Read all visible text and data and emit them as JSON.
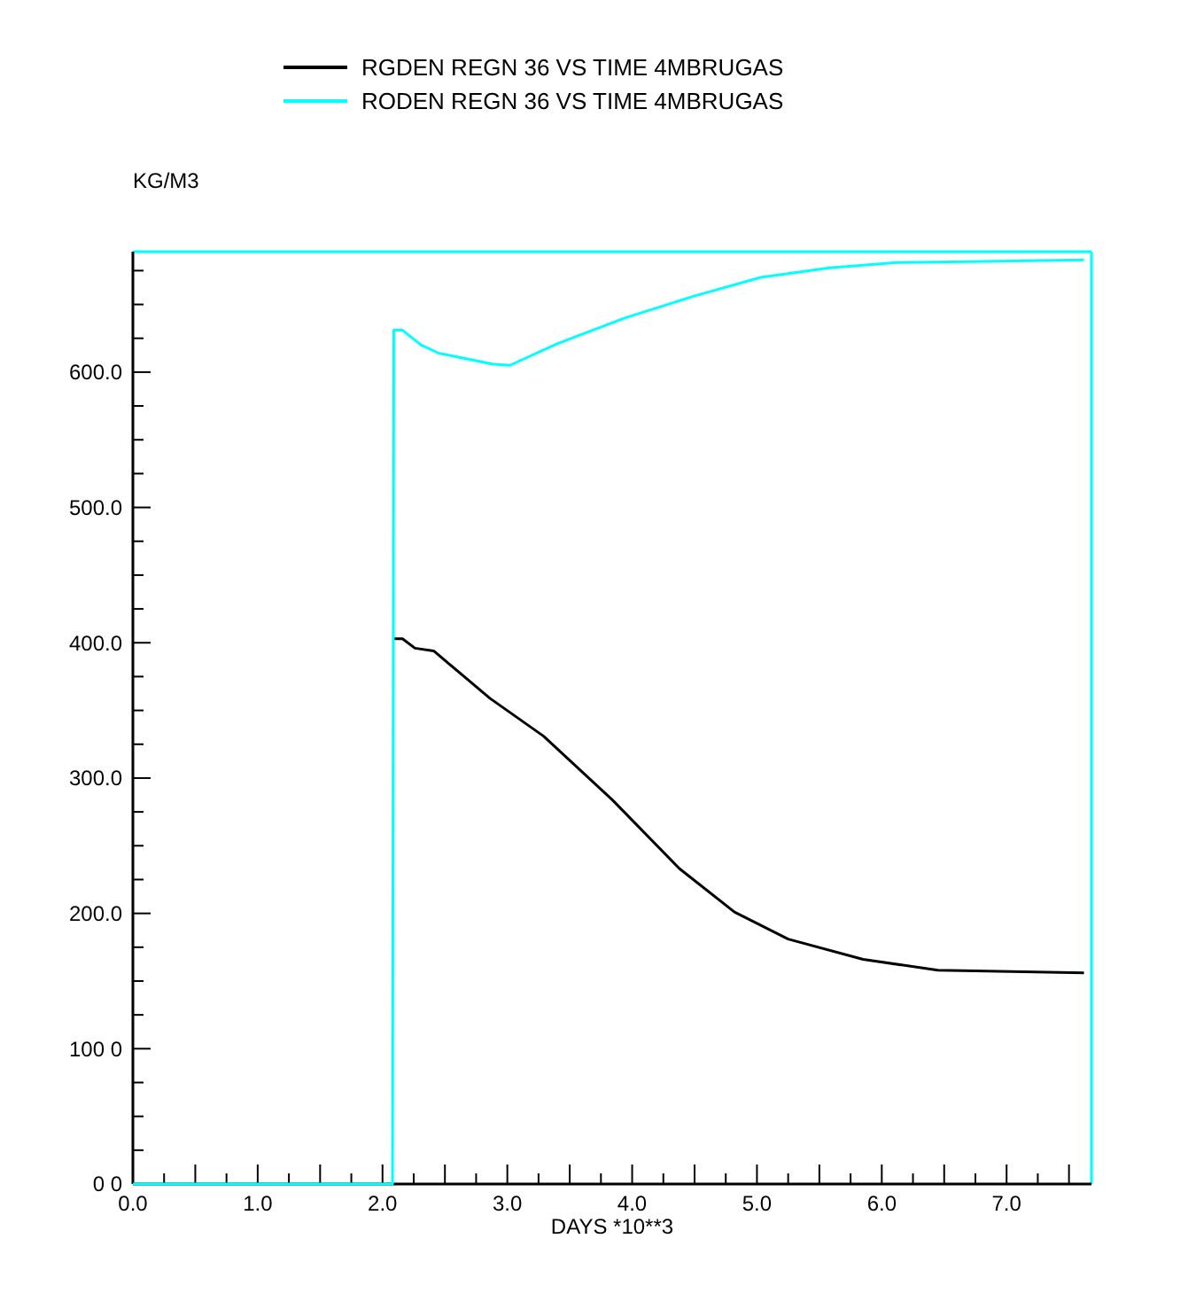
{
  "chart_data": {
    "type": "line",
    "xlabel": "DAYS *10**3",
    "ylabel": "KG/M3",
    "legend": "top",
    "grid": false,
    "marker": "none",
    "line_style": "solid",
    "xlim": [
      0,
      7.68
    ],
    "ylim": [
      0,
      689
    ],
    "xticks": [
      {
        "value": 0,
        "label": "0.0"
      },
      {
        "value": 0.25,
        "label": null
      },
      {
        "value": 0.5,
        "label": null
      },
      {
        "value": 0.75,
        "label": null
      },
      {
        "value": 1,
        "label": "1.0"
      },
      {
        "value": 1.25,
        "label": null
      },
      {
        "value": 1.5,
        "label": null
      },
      {
        "value": 1.75,
        "label": null
      },
      {
        "value": 2,
        "label": "2.0"
      },
      {
        "value": 2.25,
        "label": null
      },
      {
        "value": 2.5,
        "label": null
      },
      {
        "value": 2.75,
        "label": null
      },
      {
        "value": 3,
        "label": "3.0"
      },
      {
        "value": 3.25,
        "label": null
      },
      {
        "value": 3.5,
        "label": null
      },
      {
        "value": 3.75,
        "label": null
      },
      {
        "value": 4,
        "label": "4.0"
      },
      {
        "value": 4.25,
        "label": null
      },
      {
        "value": 4.5,
        "label": null
      },
      {
        "value": 4.75,
        "label": null
      },
      {
        "value": 5,
        "label": "5.0"
      },
      {
        "value": 5.25,
        "label": null
      },
      {
        "value": 5.5,
        "label": null
      },
      {
        "value": 5.75,
        "label": null
      },
      {
        "value": 6,
        "label": "6.0"
      },
      {
        "value": 6.25,
        "label": null
      },
      {
        "value": 6.5,
        "label": null
      },
      {
        "value": 6.75,
        "label": null
      },
      {
        "value": 7,
        "label": "7.0"
      },
      {
        "value": 7.25,
        "label": null
      },
      {
        "value": 7.5,
        "label": null
      }
    ],
    "yticks": [
      {
        "value": 0,
        "label": "0 0"
      },
      {
        "value": 25,
        "label": null
      },
      {
        "value": 50,
        "label": null
      },
      {
        "value": 75,
        "label": null
      },
      {
        "value": 100,
        "label": "100 0"
      },
      {
        "value": 125,
        "label": null
      },
      {
        "value": 150,
        "label": null
      },
      {
        "value": 175,
        "label": null
      },
      {
        "value": 200,
        "label": "200.0"
      },
      {
        "value": 225,
        "label": null
      },
      {
        "value": 250,
        "label": null
      },
      {
        "value": 275,
        "label": null
      },
      {
        "value": 300,
        "label": "300.0"
      },
      {
        "value": 325,
        "label": null
      },
      {
        "value": 350,
        "label": null
      },
      {
        "value": 375,
        "label": null
      },
      {
        "value": 400,
        "label": "400.0"
      },
      {
        "value": 425,
        "label": null
      },
      {
        "value": 450,
        "label": null
      },
      {
        "value": 475,
        "label": null
      },
      {
        "value": 500,
        "label": "500.0"
      },
      {
        "value": 525,
        "label": null
      },
      {
        "value": 550,
        "label": null
      },
      {
        "value": 575,
        "label": null
      },
      {
        "value": 600,
        "label": "600.0"
      },
      {
        "value": 625,
        "label": null
      },
      {
        "value": 650,
        "label": null
      },
      {
        "value": 675,
        "label": null
      }
    ],
    "series": [
      {
        "name": "RGDEN REGN 36 VS TIME 4MBRUGAS",
        "color": "#000000",
        "x": [
          2.09,
          2.16,
          2.26,
          2.41,
          2.86,
          3.29,
          3.84,
          4.38,
          4.82,
          5.25,
          5.85,
          6.45,
          7.62
        ],
        "values": [
          403,
          403,
          396,
          394,
          359,
          331,
          284,
          233,
          201,
          181,
          166,
          158,
          156
        ]
      },
      {
        "name": "RODEN REGN 36 VS TIME 4MBRUGAS",
        "color": "#00ffff",
        "x": [
          0,
          2.08,
          2.09,
          2.16,
          2.31,
          2.45,
          2.88,
          3.02,
          3.4,
          3.94,
          4.49,
          5.03,
          5.58,
          6.12,
          6.94,
          7.62
        ],
        "values": [
          0,
          0,
          631,
          631,
          620,
          614,
          606,
          605,
          621,
          640,
          656,
          670,
          677,
          681,
          682,
          683
        ]
      }
    ]
  }
}
